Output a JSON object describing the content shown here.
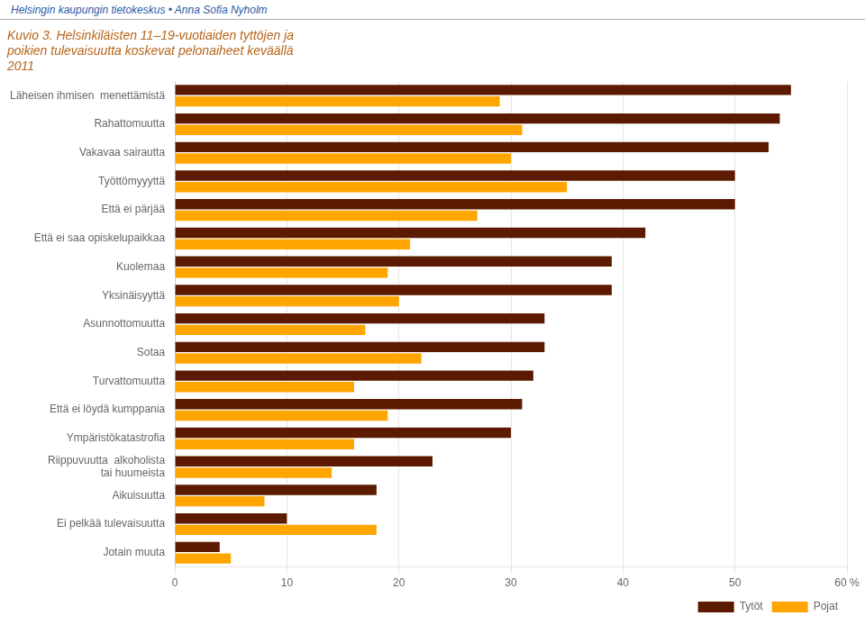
{
  "chart_data": {
    "type": "bar",
    "orientation": "horizontal",
    "title": "Kuvio 3. Helsinkiläisten 11–19-vuotiaiden tyttöjen ja\npoikien tulevaisuutta koskevat pelonaiheet keväällä\n2011",
    "annotations": [
      "Helsingin kaupungin tietokeskus • Anna Sofia Nyholm"
    ],
    "categories": [
      "Läheisen ihmisen  menettämistä",
      "Rahattomuutta",
      "Vakavaa sairautta",
      "Työttömyyyttä",
      "Että ei pärjää",
      "Että ei saa opiskelupaikkaa",
      "Kuolemaa",
      "Yksinäisyyttä",
      "Asunnottomuutta",
      "Sotaa",
      "Turvattomuutta",
      "Että ei löydä kumppania",
      "Ympäristökatastrofia",
      "Riippuvuutta  alkoholista\ntai huumeista",
      "Aikuisuutta",
      "Ei pelkää tulevaisuutta",
      "Jotain muuta"
    ],
    "series": [
      {
        "name": "Tytöt",
        "color": "#5C1A00",
        "values": [
          55,
          54,
          53,
          50,
          50,
          42,
          39,
          39,
          33,
          33,
          32,
          31,
          30,
          23,
          18,
          10,
          4
        ]
      },
      {
        "name": "Pojat",
        "color": "#FFA500",
        "values": [
          29,
          31,
          30,
          35,
          27,
          21,
          19,
          20,
          17,
          22,
          16,
          19,
          16,
          14,
          8,
          18,
          5
        ]
      }
    ],
    "xlim": [
      0,
      60
    ],
    "xticks": [
      0,
      10,
      20,
      30,
      40,
      50,
      {
        "value": 60,
        "label": "60 %"
      }
    ],
    "grid": true,
    "legend": "lower right"
  }
}
